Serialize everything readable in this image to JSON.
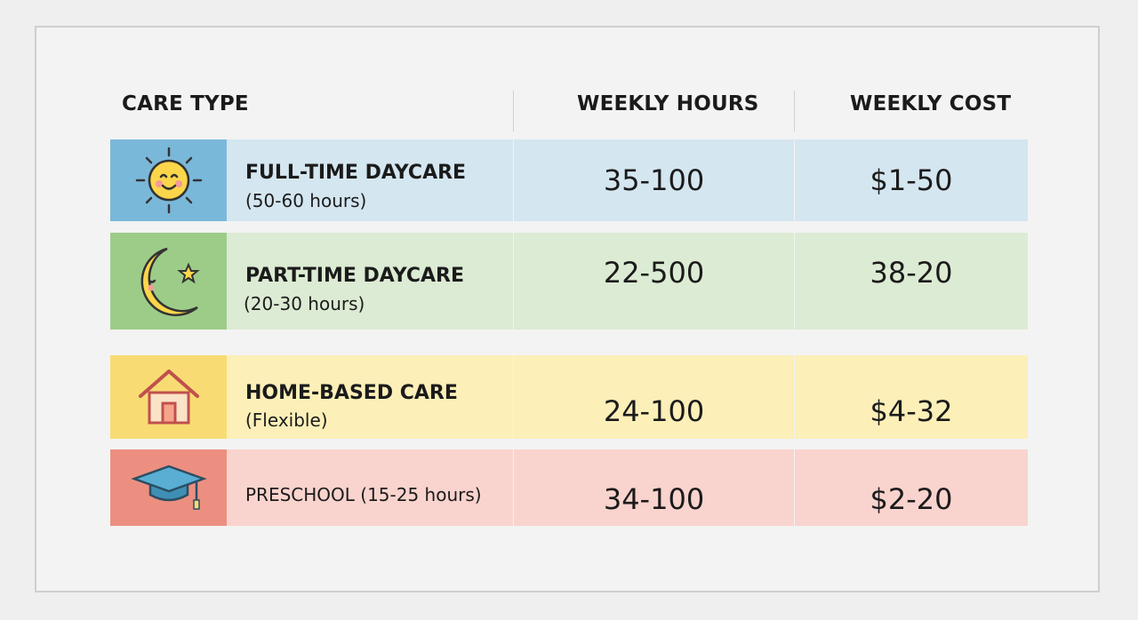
{
  "table": {
    "headers": [
      "CARE TYPE",
      "WEEKLY HOURS",
      "WEEKLY COST"
    ],
    "rows": [
      {
        "name": "FULL-TIME DAYCARE",
        "detail": "(50-60 hours)",
        "hours": "35-100",
        "cost": "$1-50"
      },
      {
        "name": "PART-TIME DAYCARE",
        "detail": "(20-30 hours)",
        "hours": "22-500",
        "cost": "38-20"
      },
      {
        "name": "HOME-BASED CARE",
        "detail": "(Flexible)",
        "hours": "24-100",
        "cost": "$4-32"
      },
      {
        "name": "PRESCHOOL (15-25 hours)",
        "hours": "34-100",
        "cost": "$2-20"
      }
    ]
  }
}
